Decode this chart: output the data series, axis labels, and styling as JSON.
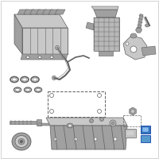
{
  "bg_color": "#ffffff",
  "border_color": "#c0c0c0",
  "part_light": "#c8c8c8",
  "part_mid": "#a0a0a0",
  "part_dark": "#606060",
  "part_darker": "#404040",
  "blue1": "#3377bb",
  "blue2": "#5599cc",
  "figsize": [
    2.0,
    2.0
  ],
  "dpi": 100
}
